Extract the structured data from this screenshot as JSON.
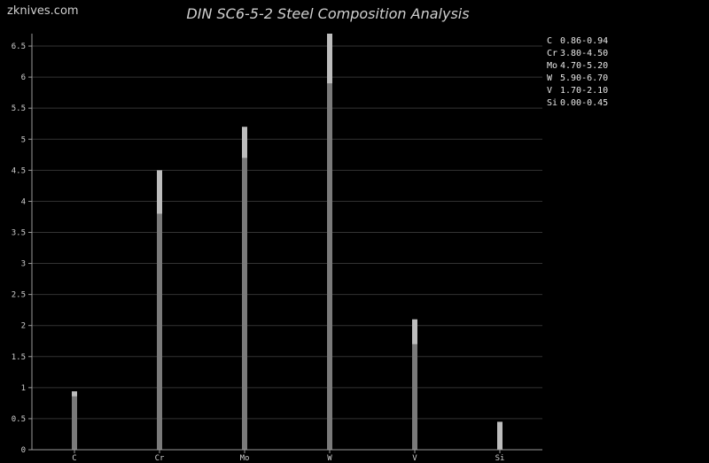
{
  "watermark": "zknives.com",
  "chart_data": {
    "type": "bar",
    "title": "DIN SC6-5-2 Steel Composition Analysis",
    "xlabel": "",
    "ylabel": "",
    "categories": [
      "C",
      "Cr",
      "Mo",
      "W",
      "V",
      "Si"
    ],
    "series": [
      {
        "values": [
          0.86,
          3.8,
          4.7,
          5.9,
          1.7,
          0.0
        ]
      },
      {
        "values": [
          0.94,
          4.5,
          5.2,
          6.7,
          2.1,
          0.45
        ]
      }
    ],
    "ranges": [
      {
        "element": "C",
        "min": 0.86,
        "max": 0.94,
        "label": "0.86-0.94"
      },
      {
        "element": "Cr",
        "min": 3.8,
        "max": 4.5,
        "label": "3.80-4.50"
      },
      {
        "element": "Mo",
        "min": 4.7,
        "max": 5.2,
        "label": "4.70-5.20"
      },
      {
        "element": "W",
        "min": 5.9,
        "max": 6.7,
        "label": "5.90-6.70"
      },
      {
        "element": "V",
        "min": 1.7,
        "max": 2.1,
        "label": "1.70-2.10"
      },
      {
        "element": "Si",
        "min": 0.0,
        "max": 0.45,
        "label": "0.00-0.45"
      }
    ],
    "yticks": [
      0,
      0.5,
      1,
      1.5,
      2,
      2.5,
      3,
      3.5,
      4,
      4.5,
      5,
      5.5,
      6,
      6.5
    ],
    "ylim": [
      0,
      6.7
    ],
    "grid": true,
    "legend_placement": "top-right"
  },
  "colors": {
    "background": "#000000",
    "bar_min": "#7a7a7a",
    "bar_max": "#bdbdbd",
    "grid": "#333333",
    "axis": "#9a9a9a",
    "text": "#cfcfcf"
  }
}
